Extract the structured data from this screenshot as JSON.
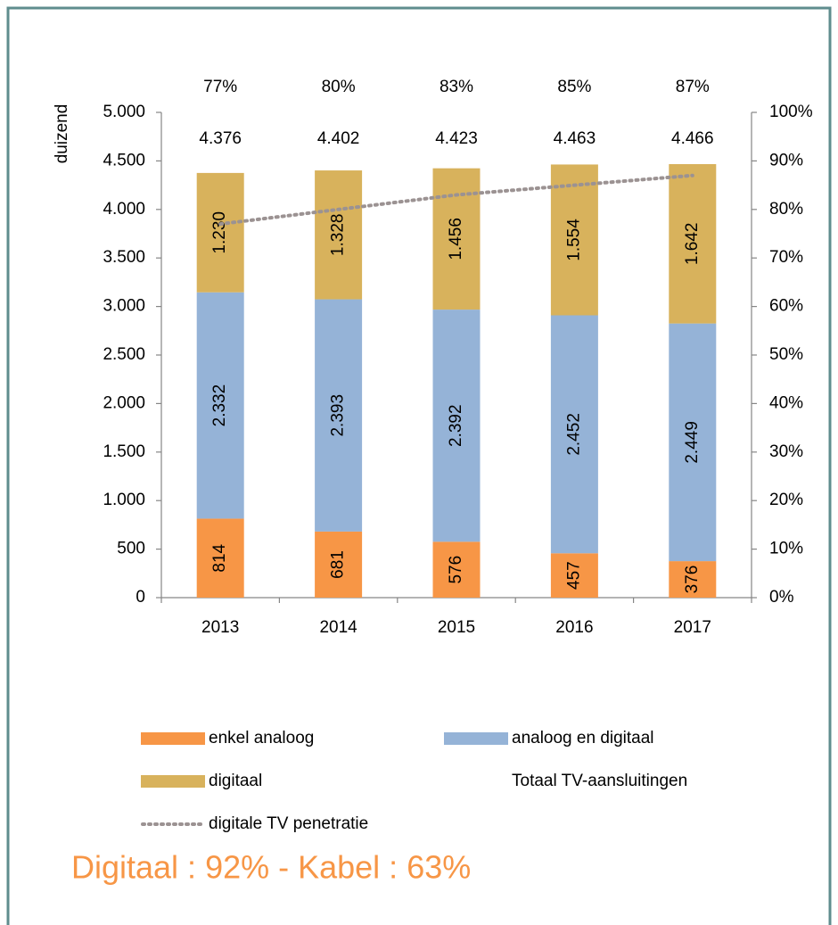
{
  "chart_data": {
    "type": "bar",
    "stacked": true,
    "ylabel": "duizend",
    "categories": [
      "2013",
      "2014",
      "2015",
      "2016",
      "2017"
    ],
    "series": [
      {
        "name": "enkel analoog",
        "color": "#f79646",
        "values": [
          814,
          681,
          576,
          457,
          376
        ]
      },
      {
        "name": "analoog en digitaal",
        "color": "#95b3d7",
        "values": [
          2332,
          2393,
          2392,
          2452,
          2449
        ],
        "value_labels": [
          "2.332",
          "2.393",
          "2.392",
          "2.452",
          "2.449"
        ]
      },
      {
        "name": "digitaal",
        "color": "#d8b25c",
        "values": [
          1230,
          1328,
          1456,
          1554,
          1642
        ],
        "value_labels": [
          "1.230",
          "1.328",
          "1.456",
          "1.554",
          "1.642"
        ]
      },
      {
        "name": "Totaal TV-aansluitingen",
        "values": [
          4376,
          4402,
          4423,
          4463,
          4466
        ],
        "value_labels": [
          "4.376",
          "4.402",
          "4.423",
          "4.463",
          "4.466"
        ]
      },
      {
        "name": "digitale TV penetratie",
        "type": "line",
        "axis": "y2",
        "color": "#9b9292",
        "line_style": "dotted",
        "values": [
          77,
          80,
          83,
          85,
          87
        ],
        "value_labels": [
          "77%",
          "80%",
          "83%",
          "85%",
          "87%"
        ]
      }
    ],
    "ylim": [
      0,
      5000
    ],
    "yticks": [
      0,
      500,
      {
        "value": 1000,
        "label": "1.000"
      },
      {
        "value": 1500,
        "label": "1.500"
      },
      {
        "value": 2000,
        "label": "2.000"
      },
      {
        "value": 2500,
        "label": "2.500"
      },
      {
        "value": 3000,
        "label": "3.000"
      },
      {
        "value": 3500,
        "label": "3.500"
      },
      {
        "value": 4000,
        "label": "4.000"
      },
      {
        "value": 4500,
        "label": "4.500"
      },
      {
        "value": 5000,
        "label": "5.000"
      }
    ],
    "y2lim": [
      0,
      100
    ],
    "y2ticks": [
      {
        "value": 0,
        "label": "0%"
      },
      {
        "value": 10,
        "label": "10%"
      },
      {
        "value": 20,
        "label": "20%"
      },
      {
        "value": 30,
        "label": "30%"
      },
      {
        "value": 40,
        "label": "40%"
      },
      {
        "value": 50,
        "label": "50%"
      },
      {
        "value": 60,
        "label": "60%"
      },
      {
        "value": 70,
        "label": "70%"
      },
      {
        "value": 80,
        "label": "80%"
      },
      {
        "value": 90,
        "label": "90%"
      },
      {
        "value": 100,
        "label": "100%"
      }
    ],
    "annotation": "Digitaal : 92% - Kabel : 63%"
  }
}
